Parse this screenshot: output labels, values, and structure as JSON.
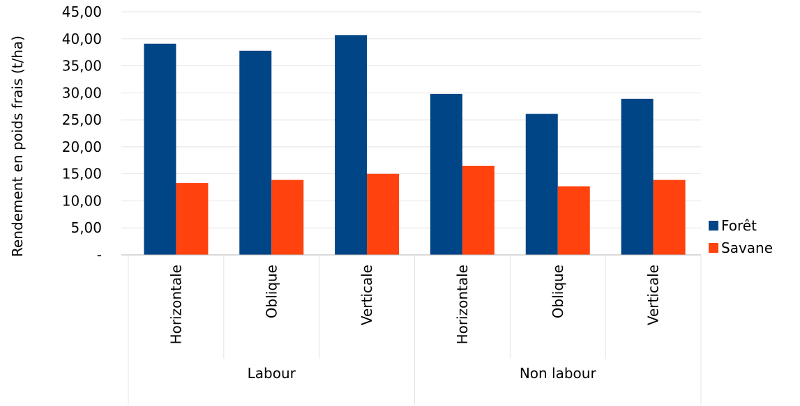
{
  "chart_data": {
    "type": "bar",
    "title": "",
    "xlabel": "",
    "ylabel": "Rendement en poids frais (t/ha)",
    "ylim": [
      0,
      45
    ],
    "yticks": [
      "-",
      "5,00",
      "10,00",
      "15,00",
      "20,00",
      "25,00",
      "30,00",
      "35,00",
      "40,00",
      "45,00"
    ],
    "grid": true,
    "legend_position": "right",
    "groups": [
      {
        "label": "Labour",
        "categories": [
          "Horizontale",
          "Oblique",
          "Verticale"
        ]
      },
      {
        "label": "Non labour",
        "categories": [
          "Horizontale",
          "Oblique",
          "Verticale"
        ]
      }
    ],
    "series": [
      {
        "name": "Forêt",
        "color": "#004586",
        "values": [
          39.1,
          37.8,
          40.7,
          29.8,
          26.1,
          28.9
        ]
      },
      {
        "name": "Savane",
        "color": "#ff420e",
        "values": [
          13.3,
          13.9,
          15.0,
          16.5,
          12.7,
          13.9
        ]
      }
    ]
  }
}
